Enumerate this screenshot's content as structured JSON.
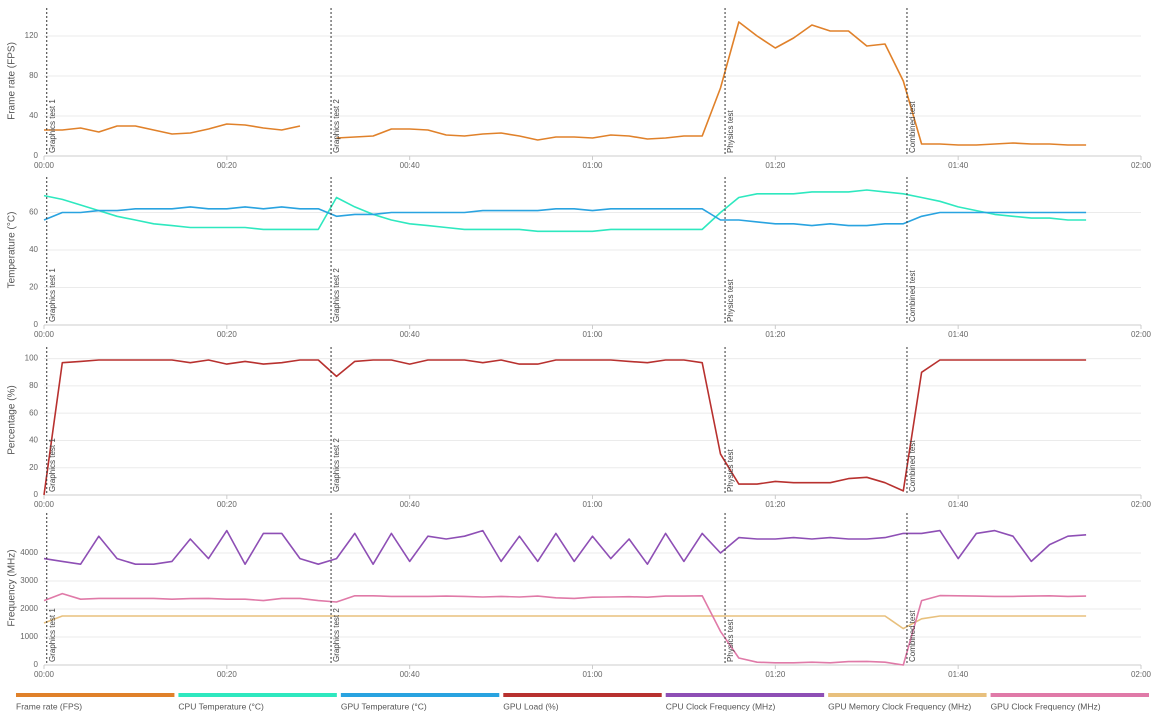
{
  "chart_data": [
    {
      "type": "line",
      "ylabel": "Frame rate (FPS)",
      "x": [
        0,
        2,
        4,
        6,
        8,
        10,
        12,
        14,
        16,
        18,
        20,
        22,
        24,
        26,
        28,
        30,
        32,
        34,
        36,
        38,
        40,
        42,
        44,
        46,
        48,
        50,
        52,
        54,
        56,
        58,
        60,
        62,
        64,
        66,
        68,
        70,
        72,
        74,
        76,
        78,
        80,
        82,
        84,
        86,
        88,
        90,
        92,
        94,
        96,
        98,
        100,
        102,
        104,
        106,
        108,
        110,
        112,
        114
      ],
      "series": [
        {
          "name": "Frame rate (FPS)",
          "color": "#e0812a",
          "values": [
            26,
            26,
            28,
            24,
            30,
            30,
            26,
            22,
            23,
            27,
            32,
            31,
            28,
            26,
            30,
            null,
            18,
            19,
            20,
            27,
            27,
            26,
            21,
            20,
            22,
            23,
            20,
            16,
            19,
            19,
            18,
            21,
            20,
            17,
            18,
            20,
            20,
            68,
            134,
            120,
            108,
            118,
            131,
            125,
            125,
            110,
            112,
            75,
            12,
            12,
            11,
            11,
            12,
            13,
            12,
            12,
            11,
            11
          ]
        }
      ],
      "xlim": [
        0,
        120
      ],
      "xticks": [
        {
          "value": 0,
          "label": "00:00"
        },
        {
          "value": 20,
          "label": "00:20"
        },
        {
          "value": 40,
          "label": "00:40"
        },
        {
          "value": 60,
          "label": "01:00"
        },
        {
          "value": 80,
          "label": "01:20"
        },
        {
          "value": 100,
          "label": "01:40"
        },
        {
          "value": 120,
          "label": "02:00"
        }
      ],
      "ylim": [
        0,
        150
      ],
      "yticks": [
        0,
        40,
        80,
        120
      ],
      "grid": true,
      "annotations": [
        {
          "x": 0.3,
          "text": "Graphics test 1"
        },
        {
          "x": 31.4,
          "text": "Graphics test 2"
        },
        {
          "x": 74.5,
          "text": "Physics test"
        },
        {
          "x": 94.4,
          "text": "Combined test"
        }
      ]
    },
    {
      "type": "line",
      "ylabel": "Temperature (°C)",
      "x": [
        0,
        2,
        4,
        6,
        8,
        10,
        12,
        14,
        16,
        18,
        20,
        22,
        24,
        26,
        28,
        30,
        32,
        34,
        36,
        38,
        40,
        42,
        44,
        46,
        48,
        50,
        52,
        54,
        56,
        58,
        60,
        62,
        64,
        66,
        68,
        70,
        72,
        74,
        76,
        78,
        80,
        82,
        84,
        86,
        88,
        90,
        92,
        94,
        96,
        98,
        100,
        102,
        104,
        106,
        108,
        110,
        112,
        114
      ],
      "series": [
        {
          "name": "CPU Temperature (°C)",
          "color": "#2ee8bf",
          "values": [
            69,
            67,
            64,
            61,
            58,
            56,
            54,
            53,
            52,
            52,
            52,
            52,
            51,
            51,
            51,
            51,
            68,
            63,
            59,
            56,
            54,
            53,
            52,
            51,
            51,
            51,
            51,
            50,
            50,
            50,
            50,
            51,
            51,
            51,
            51,
            51,
            51,
            60,
            68,
            70,
            70,
            70,
            71,
            71,
            71,
            72,
            71,
            70,
            68,
            66,
            63,
            61,
            59,
            58,
            57,
            57,
            56,
            56
          ]
        },
        {
          "name": "GPU Temperature (°C)",
          "color": "#29a3e0",
          "values": [
            56,
            60,
            60,
            61,
            61,
            62,
            62,
            62,
            63,
            62,
            62,
            63,
            62,
            63,
            62,
            62,
            58,
            59,
            59,
            60,
            60,
            60,
            60,
            60,
            61,
            61,
            61,
            61,
            62,
            62,
            61,
            62,
            62,
            62,
            62,
            62,
            62,
            56,
            56,
            55,
            54,
            54,
            53,
            54,
            53,
            53,
            54,
            54,
            58,
            60,
            60,
            60,
            60,
            60,
            60,
            60,
            60,
            60
          ]
        }
      ],
      "xlim": [
        0,
        120
      ],
      "xticks": [
        {
          "value": 0,
          "label": "00:00"
        },
        {
          "value": 20,
          "label": "00:20"
        },
        {
          "value": 40,
          "label": "00:40"
        },
        {
          "value": 60,
          "label": "01:00"
        },
        {
          "value": 80,
          "label": "01:20"
        },
        {
          "value": 100,
          "label": "01:40"
        },
        {
          "value": 120,
          "label": "02:00"
        }
      ],
      "ylim": [
        0,
        80
      ],
      "yticks": [
        0,
        20,
        40,
        60
      ],
      "grid": true,
      "annotations": [
        {
          "x": 0.3,
          "text": "Graphics test 1"
        },
        {
          "x": 31.4,
          "text": "Graphics test 2"
        },
        {
          "x": 74.5,
          "text": "Physics test"
        },
        {
          "x": 94.4,
          "text": "Combined test"
        }
      ]
    },
    {
      "type": "line",
      "ylabel": "Percentage (%)",
      "x": [
        0,
        2,
        4,
        6,
        8,
        10,
        12,
        14,
        16,
        18,
        20,
        22,
        24,
        26,
        28,
        30,
        32,
        34,
        36,
        38,
        40,
        42,
        44,
        46,
        48,
        50,
        52,
        54,
        56,
        58,
        60,
        62,
        64,
        66,
        68,
        70,
        72,
        74,
        76,
        78,
        80,
        82,
        84,
        86,
        88,
        90,
        92,
        94,
        96,
        98,
        100,
        102,
        104,
        106,
        108,
        110,
        112,
        114
      ],
      "series": [
        {
          "name": "GPU Load (%)",
          "color": "#b8312f",
          "values": [
            0,
            97,
            98,
            99,
            99,
            99,
            99,
            99,
            97,
            99,
            96,
            98,
            96,
            97,
            99,
            99,
            87,
            98,
            99,
            99,
            96,
            99,
            99,
            99,
            97,
            99,
            96,
            96,
            99,
            99,
            99,
            99,
            98,
            97,
            99,
            99,
            97,
            30,
            8,
            8,
            10,
            9,
            9,
            9,
            12,
            13,
            9,
            3,
            90,
            99,
            99,
            99,
            99,
            99,
            99,
            99,
            99,
            99
          ]
        }
      ],
      "xlim": [
        0,
        120
      ],
      "xticks": [
        {
          "value": 0,
          "label": "00:00"
        },
        {
          "value": 20,
          "label": "00:20"
        },
        {
          "value": 40,
          "label": "00:40"
        },
        {
          "value": 60,
          "label": "01:00"
        },
        {
          "value": 80,
          "label": "01:20"
        },
        {
          "value": 100,
          "label": "01:40"
        },
        {
          "value": 120,
          "label": "02:00"
        }
      ],
      "ylim": [
        0,
        110
      ],
      "yticks": [
        0,
        20,
        40,
        60,
        80,
        100
      ],
      "grid": true,
      "annotations": [
        {
          "x": 0.3,
          "text": "Graphics test 1"
        },
        {
          "x": 31.4,
          "text": "Graphics test 2"
        },
        {
          "x": 74.5,
          "text": "Physics test"
        },
        {
          "x": 94.4,
          "text": "Combined test"
        }
      ]
    },
    {
      "type": "line",
      "ylabel": "Frequency (MHz)",
      "x": [
        0,
        2,
        4,
        6,
        8,
        10,
        12,
        14,
        16,
        18,
        20,
        22,
        24,
        26,
        28,
        30,
        32,
        34,
        36,
        38,
        40,
        42,
        44,
        46,
        48,
        50,
        52,
        54,
        56,
        58,
        60,
        62,
        64,
        66,
        68,
        70,
        72,
        74,
        76,
        78,
        80,
        82,
        84,
        86,
        88,
        90,
        92,
        94,
        96,
        98,
        100,
        102,
        104,
        106,
        108,
        110,
        112,
        114
      ],
      "series": [
        {
          "name": "CPU Clock Frequency (MHz)",
          "color": "#8e4fb5",
          "values": [
            3800,
            3700,
            3600,
            4600,
            3800,
            3600,
            3600,
            3700,
            4500,
            3800,
            4800,
            3600,
            4700,
            4700,
            3800,
            3600,
            3800,
            4700,
            3600,
            4700,
            3700,
            4600,
            4500,
            4600,
            4800,
            3700,
            4600,
            3700,
            4700,
            3700,
            4600,
            3800,
            4500,
            3600,
            4700,
            3700,
            4700,
            4000,
            4550,
            4500,
            4500,
            4550,
            4500,
            4550,
            4500,
            4500,
            4550,
            4700,
            4700,
            4800,
            3800,
            4700,
            4800,
            4600,
            3700,
            4300,
            4600,
            4650
          ]
        },
        {
          "name": "GPU Memory Clock Frequency (MHz)",
          "color": "#e8c07d",
          "values": [
            1500,
            1750,
            1750,
            1750,
            1750,
            1750,
            1750,
            1750,
            1750,
            1750,
            1750,
            1750,
            1750,
            1750,
            1750,
            1750,
            1750,
            1750,
            1750,
            1750,
            1750,
            1750,
            1750,
            1750,
            1750,
            1750,
            1750,
            1750,
            1750,
            1750,
            1750,
            1750,
            1750,
            1750,
            1750,
            1750,
            1750,
            1750,
            1750,
            1750,
            1750,
            1750,
            1750,
            1750,
            1750,
            1750,
            1750,
            1300,
            1650,
            1750,
            1750,
            1750,
            1750,
            1750,
            1750,
            1750,
            1750,
            1750
          ]
        },
        {
          "name": "GPU Clock Frequency (MHz)",
          "color": "#e07aa8",
          "values": [
            2300,
            2550,
            2350,
            2380,
            2380,
            2380,
            2380,
            2350,
            2370,
            2380,
            2350,
            2350,
            2300,
            2380,
            2380,
            2300,
            2250,
            2470,
            2470,
            2450,
            2450,
            2450,
            2460,
            2450,
            2430,
            2450,
            2430,
            2460,
            2400,
            2380,
            2420,
            2430,
            2440,
            2420,
            2460,
            2460,
            2470,
            1200,
            250,
            100,
            80,
            80,
            100,
            80,
            120,
            130,
            100,
            0,
            2300,
            2480,
            2470,
            2460,
            2450,
            2450,
            2460,
            2470,
            2450,
            2460
          ]
        }
      ],
      "xlim": [
        0,
        120
      ],
      "xticks": [
        {
          "value": 0,
          "label": "00:00"
        },
        {
          "value": 20,
          "label": "00:20"
        },
        {
          "value": 40,
          "label": "00:40"
        },
        {
          "value": 60,
          "label": "01:00"
        },
        {
          "value": 80,
          "label": "01:20"
        },
        {
          "value": 100,
          "label": "01:40"
        },
        {
          "value": 120,
          "label": "02:00"
        }
      ],
      "ylim": [
        0,
        5500
      ],
      "yticks": [
        0,
        1000,
        2000,
        3000,
        4000
      ],
      "grid": true,
      "annotations": [
        {
          "x": 0.3,
          "text": "Graphics test 1"
        },
        {
          "x": 31.4,
          "text": "Graphics test 2"
        },
        {
          "x": 74.5,
          "text": "Physics test"
        },
        {
          "x": 94.4,
          "text": "Combined test"
        }
      ]
    }
  ]
}
